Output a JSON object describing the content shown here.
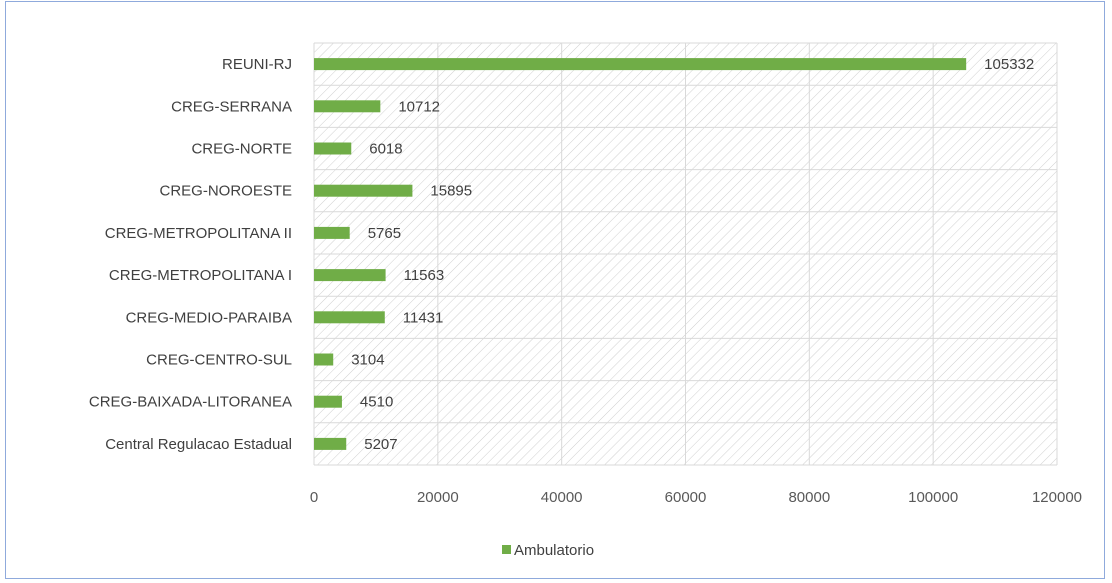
{
  "chart_data": {
    "type": "bar",
    "orientation": "horizontal",
    "title": "",
    "xlabel": "",
    "ylabel": "",
    "categories": [
      "REUNI-RJ",
      "CREG-SERRANA",
      "CREG-NORTE",
      "CREG-NOROESTE",
      "CREG-METROPOLITANA II",
      "CREG-METROPOLITANA I",
      "CREG-MEDIO-PARAIBA",
      "CREG-CENTRO-SUL",
      "CREG-BAIXADA-LITORANEA",
      "Central Regulacao Estadual"
    ],
    "series": [
      {
        "name": "Ambulatorio",
        "values": [
          105332,
          10712,
          6018,
          15895,
          5765,
          11563,
          11431,
          3104,
          4510,
          5207
        ]
      }
    ],
    "xlim": [
      0,
      120000
    ],
    "xticks": [
      "0",
      "20000",
      "40000",
      "60000",
      "80000",
      "100000",
      "120000"
    ],
    "grid": true,
    "hatched_plot_area": true,
    "legend_position": "bottom",
    "colors": {
      "bar": "#70ad47",
      "grid": "#d9d9d9",
      "hatch": "#d9d9d9",
      "border": "#8faadc"
    }
  }
}
